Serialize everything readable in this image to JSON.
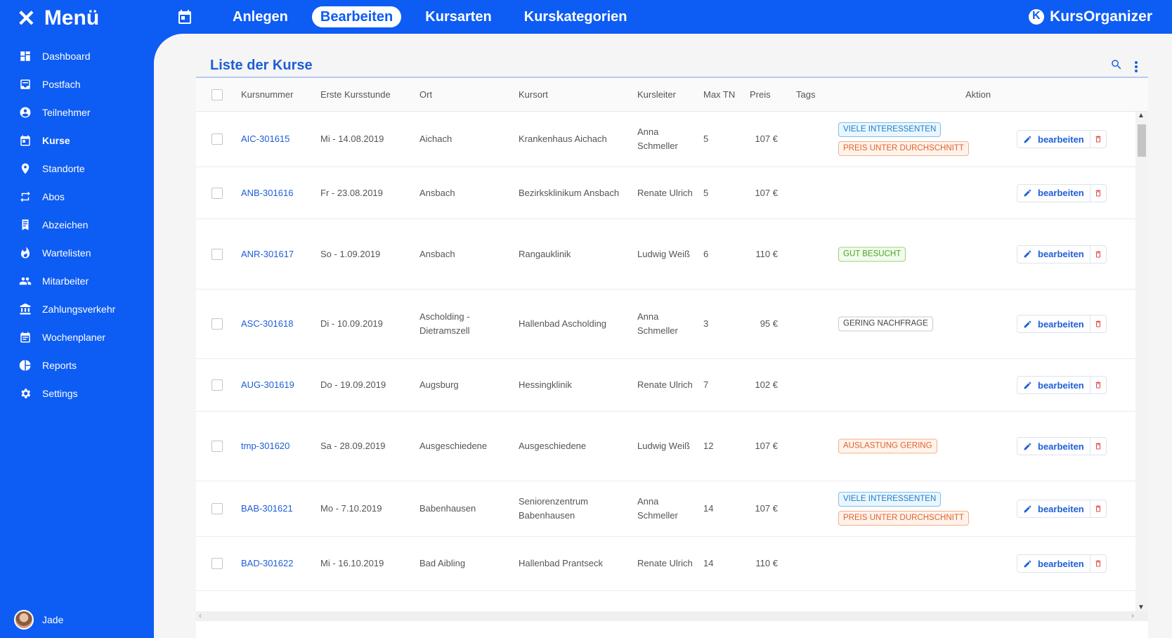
{
  "menu": {
    "close_glyph": "✕",
    "label": "Menü"
  },
  "sidebar": {
    "items": [
      {
        "label": "Dashboard",
        "icon": "dashboard-icon",
        "active": false
      },
      {
        "label": "Postfach",
        "icon": "inbox-icon",
        "active": false
      },
      {
        "label": "Teilnehmer",
        "icon": "person-icon",
        "active": false
      },
      {
        "label": "Kurse",
        "icon": "calendar-icon",
        "active": true
      },
      {
        "label": "Standorte",
        "icon": "location-icon",
        "active": false
      },
      {
        "label": "Abos",
        "icon": "repeat-icon",
        "active": false
      },
      {
        "label": "Abzeichen",
        "icon": "badge-icon",
        "active": false
      },
      {
        "label": "Wartelisten",
        "icon": "flame-icon",
        "active": false
      },
      {
        "label": "Mitarbeiter",
        "icon": "people-icon",
        "active": false
      },
      {
        "label": "Zahlungsverkehr",
        "icon": "bank-icon",
        "active": false
      },
      {
        "label": "Wochenplaner",
        "icon": "planner-icon",
        "active": false
      },
      {
        "label": "Reports",
        "icon": "pie-chart-icon",
        "active": false
      },
      {
        "label": "Settings",
        "icon": "gear-icon",
        "active": false
      }
    ],
    "user": {
      "name": "Jade"
    }
  },
  "topbar": {
    "tabs": [
      {
        "label": "Anlegen",
        "active": false
      },
      {
        "label": "Bearbeiten",
        "active": true
      },
      {
        "label": "Kursarten",
        "active": false
      },
      {
        "label": "Kurskategorien",
        "active": false
      }
    ],
    "brand": "KursOrganizer"
  },
  "main": {
    "title": "Liste der Kurse",
    "columns": [
      "Kursnummer",
      "Erste Kursstunde",
      "Ort",
      "Kursort",
      "Kursleiter",
      "Max TN",
      "Preis",
      "Tags",
      "Aktion"
    ],
    "edit_label": "bearbeiten",
    "rows": [
      {
        "nummer": "AIC-301615",
        "datum": "Mi - 14.08.2019",
        "ort": "Aichach",
        "kursort": "Krankenhaus Aichach",
        "leiter": "Anna\nSchmeller",
        "max": "5",
        "preis": "107 €",
        "tags": [
          {
            "text": "VIELE INTERESSENTEN",
            "color": "blue"
          },
          {
            "text": "PREIS UNTER DURCHSCHNITT",
            "color": "orange"
          }
        ]
      },
      {
        "nummer": "ANB-301616",
        "datum": "Fr - 23.08.2019",
        "ort": "Ansbach",
        "kursort": "Bezirksklinikum Ansbach",
        "leiter": "Renate Ulrich",
        "max": "5",
        "preis": "107 €",
        "tags": []
      },
      {
        "nummer": "ANR-301617",
        "datum": "So - 1.09.2019",
        "ort": "Ansbach",
        "kursort": "Rangauklinik",
        "leiter": "Ludwig Weiß",
        "max": "6",
        "preis": "110 €",
        "tags": [
          {
            "text": "GUT BESUCHT",
            "color": "green"
          }
        ]
      },
      {
        "nummer": "ASC-301618",
        "datum": "Di - 10.09.2019",
        "ort": "Ascholding -\nDietramszell",
        "kursort": "Hallenbad Ascholding",
        "leiter": "Anna\nSchmeller",
        "max": "3",
        "preis": "95 €",
        "tags": [
          {
            "text": "GERING NACHFRAGE",
            "color": "gray"
          }
        ]
      },
      {
        "nummer": "AUG-301619",
        "datum": "Do - 19.09.2019",
        "ort": "Augsburg",
        "kursort": "Hessingklinik",
        "leiter": "Renate Ulrich",
        "max": "7",
        "preis": "102 €",
        "tags": []
      },
      {
        "nummer": "tmp-301620",
        "datum": "Sa - 28.09.2019",
        "ort": "Ausgeschiedene",
        "kursort": "Ausgeschiedene",
        "leiter": "Ludwig Weiß",
        "max": "12",
        "preis": "107 €",
        "tags": [
          {
            "text": "AUSLASTUNG GERING",
            "color": "orange"
          }
        ]
      },
      {
        "nummer": "BAB-301621",
        "datum": "Mo - 7.10.2019",
        "ort": "Babenhausen",
        "kursort": "Seniorenzentrum\nBabenhausen",
        "leiter": "Anna\nSchmeller",
        "max": "14",
        "preis": "107 €",
        "tags": [
          {
            "text": "VIELE INTERESSENTEN",
            "color": "blue"
          },
          {
            "text": "PREIS UNTER DURCHSCHNITT",
            "color": "orange"
          }
        ]
      },
      {
        "nummer": "BAD-301622",
        "datum": "Mi - 16.10.2019",
        "ort": "Bad Aibling",
        "kursort": "Hallenbad Prantseck",
        "leiter": "Renate Ulrich",
        "max": "14",
        "preis": "110 €",
        "tags": []
      }
    ]
  },
  "colors": {
    "primary": "#0d5cf4",
    "link": "#1e5ed8",
    "delete": "#e04545"
  }
}
